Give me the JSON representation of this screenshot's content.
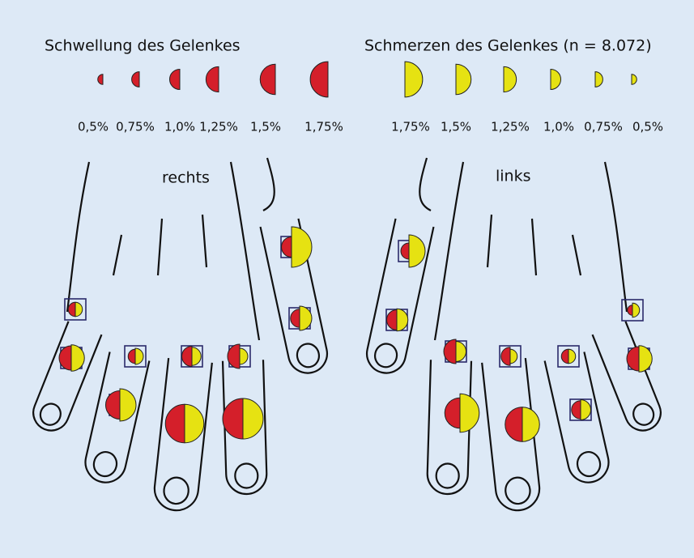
{
  "legend": {
    "swelling": {
      "title": "Schwellung des Gelenkes",
      "color": "#d41f2a",
      "sizes": [
        {
          "value": 0.5,
          "label": "0,5%"
        },
        {
          "value": 0.75,
          "label": "0,75%"
        },
        {
          "value": 1.0,
          "label": "1,0%"
        },
        {
          "value": 1.25,
          "label": "1,25%"
        },
        {
          "value": 1.5,
          "label": "1,5%"
        },
        {
          "value": 1.75,
          "label": "1,75%"
        }
      ]
    },
    "pain": {
      "title": "Schmerzen des Gelenkes (n = 8.072)",
      "color": "#e6e212",
      "sizes": [
        {
          "value": 1.75,
          "label": "1,75%"
        },
        {
          "value": 1.5,
          "label": "1,5%"
        },
        {
          "value": 1.25,
          "label": "1,25%"
        },
        {
          "value": 1.0,
          "label": "1,0%"
        },
        {
          "value": 0.75,
          "label": "0,75%"
        },
        {
          "value": 0.5,
          "label": "0,5%"
        }
      ]
    }
  },
  "hands": [
    {
      "label": "rechts",
      "joints": [
        {
          "swelling": 1.0,
          "pain": 2.0
        },
        {
          "swelling": 0.9,
          "pain": 1.2
        },
        {
          "swelling": 0.7,
          "pain": 0.7
        },
        {
          "swelling": 1.2,
          "pain": 1.3
        },
        {
          "swelling": 0.7,
          "pain": 0.8
        },
        {
          "swelling": 1.0,
          "pain": 0.9
        },
        {
          "swelling": 1.2,
          "pain": 0.8
        },
        {
          "swelling": 1.4,
          "pain": 1.6
        },
        {
          "swelling": 1.9,
          "pain": 1.9
        },
        {
          "swelling": 2.0,
          "pain": 2.0
        }
      ]
    },
    {
      "label": "links",
      "joints": [
        {
          "swelling": 0.8,
          "pain": 1.6
        },
        {
          "swelling": 1.0,
          "pain": 1.1
        },
        {
          "swelling": 1.2,
          "pain": 1.0
        },
        {
          "swelling": 0.9,
          "pain": 0.7
        },
        {
          "swelling": 0.7,
          "pain": 0.7
        },
        {
          "swelling": 0.5,
          "pain": 0.7
        },
        {
          "swelling": 1.2,
          "pain": 1.3
        },
        {
          "swelling": 1.5,
          "pain": 1.9
        },
        {
          "swelling": 1.7,
          "pain": 1.7
        },
        {
          "swelling": 0.9,
          "pain": 1.0
        }
      ]
    }
  ]
}
